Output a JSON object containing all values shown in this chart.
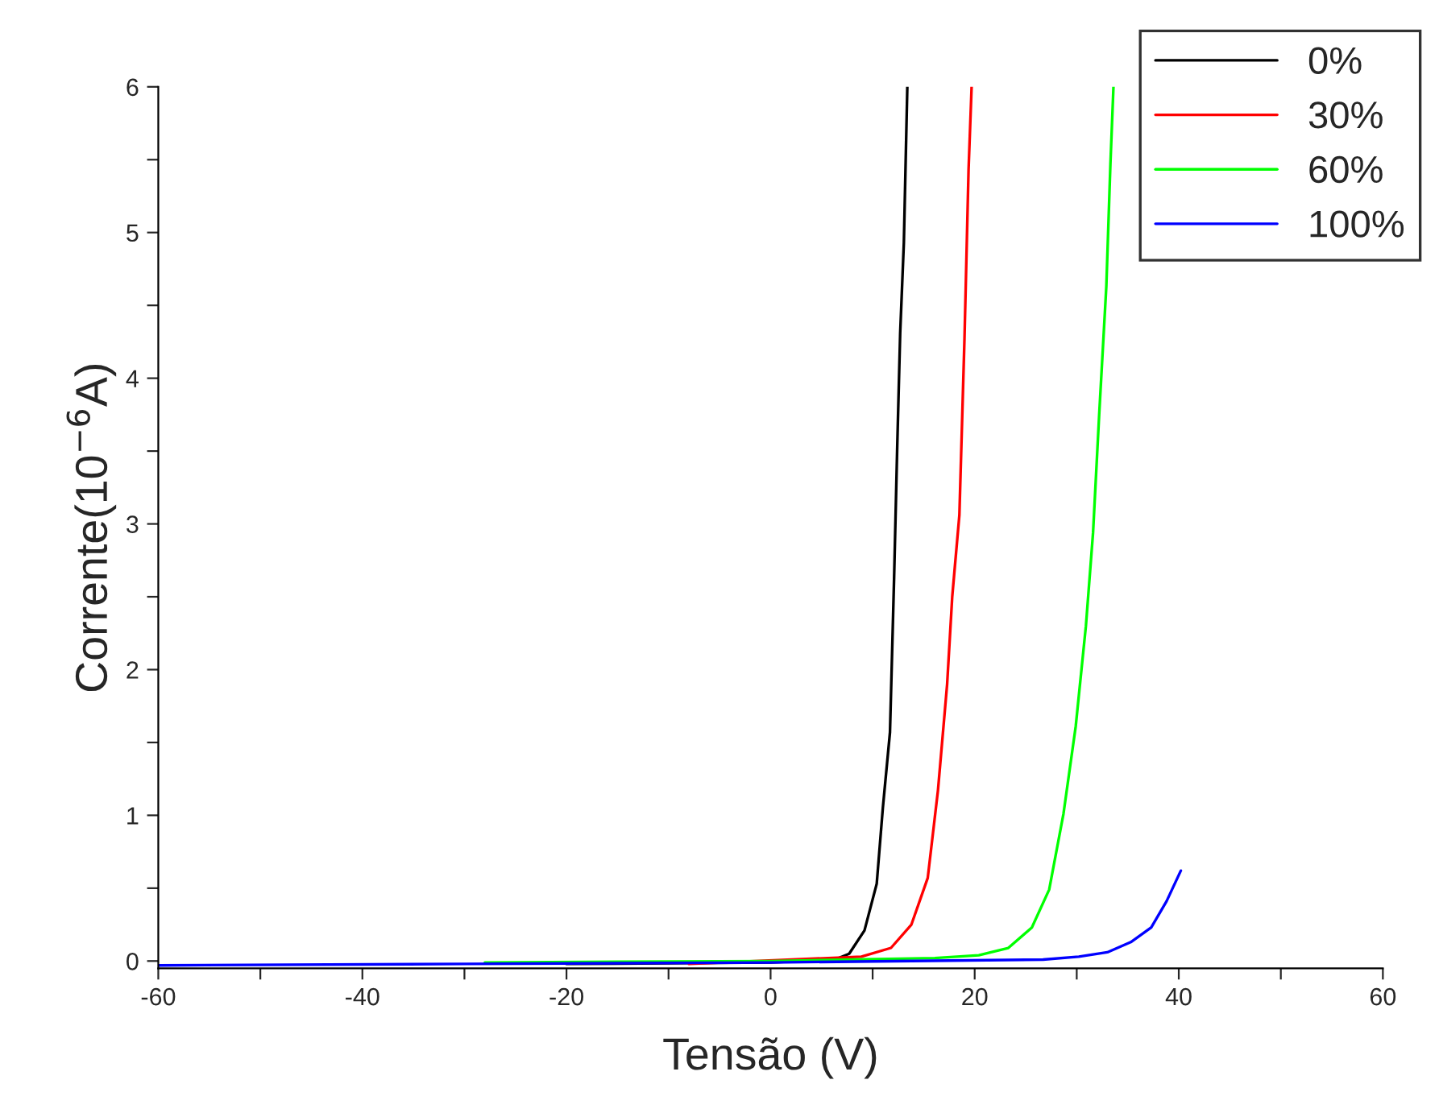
{
  "chart_data": {
    "type": "line",
    "xlabel": "Tensão (V)",
    "ylabel": "Corrente(10$^{−6}$A)",
    "xlim": [
      -60,
      60
    ],
    "ylim": [
      -0.05,
      6
    ],
    "xticks": [
      -60,
      {
        "value": -50,
        "label": null
      },
      -40,
      {
        "value": -30,
        "label": null
      },
      -20,
      {
        "value": -10,
        "label": null
      },
      0,
      {
        "value": 10,
        "label": null
      },
      20,
      {
        "value": 30,
        "label": null
      },
      40,
      {
        "value": 50,
        "label": null
      },
      60
    ],
    "yticks": [
      0,
      {
        "value": 0.5,
        "label": null
      },
      1,
      {
        "value": 1.5,
        "label": null
      },
      2,
      {
        "value": 2.5,
        "label": null
      },
      3,
      {
        "value": 3.5,
        "label": null
      },
      4,
      {
        "value": 4.5,
        "label": null
      },
      5,
      {
        "value": 5.5,
        "label": null
      },
      6
    ],
    "legend": "top right",
    "grid": false,
    "marker": "none",
    "line_style": "solid",
    "series": [
      {
        "name": "0%",
        "color": "#000000",
        "x": [
          -20,
          0,
          6.3,
          7.7,
          9.2,
          10.4,
          11.0,
          11.7,
          12.1,
          12.4,
          12.7,
          13.06,
          13.4
        ],
        "values": [
          -0.02,
          -0.01,
          0.01,
          0.05,
          0.21,
          0.53,
          1.05,
          1.57,
          2.62,
          3.5,
          4.31,
          4.93,
          6
        ]
      },
      {
        "name": "30%",
        "color": "#ff0000",
        "x": [
          -8,
          8.9,
          11.8,
          13.8,
          15.4,
          16.4,
          17.3,
          17.8,
          18.5,
          19.0,
          19.4,
          19.7
        ],
        "values": [
          -0.02,
          0.03,
          0.09,
          0.25,
          0.57,
          1.17,
          1.9,
          2.5,
          3.06,
          4.27,
          5.43,
          6
        ]
      },
      {
        "name": "60%",
        "color": "#00ff00",
        "x": [
          -28,
          0,
          16.1,
          20.4,
          23.3,
          25.6,
          27.3,
          28.7,
          29.9,
          30.9,
          31.6,
          32.2,
          32.9,
          33.3,
          33.6
        ],
        "values": [
          -0.01,
          0.0,
          0.02,
          0.04,
          0.09,
          0.23,
          0.49,
          1.01,
          1.61,
          2.3,
          2.94,
          3.75,
          4.63,
          5.47,
          6
        ]
      },
      {
        "name": "100%",
        "color": "#0000ff",
        "x": [
          -60,
          -30,
          0,
          26.7,
          30.2,
          33.0,
          35.3,
          37.3,
          38.8,
          40.2
        ],
        "values": [
          -0.03,
          -0.02,
          -0.01,
          0.01,
          0.03,
          0.06,
          0.13,
          0.23,
          0.41,
          0.62
        ]
      }
    ]
  }
}
